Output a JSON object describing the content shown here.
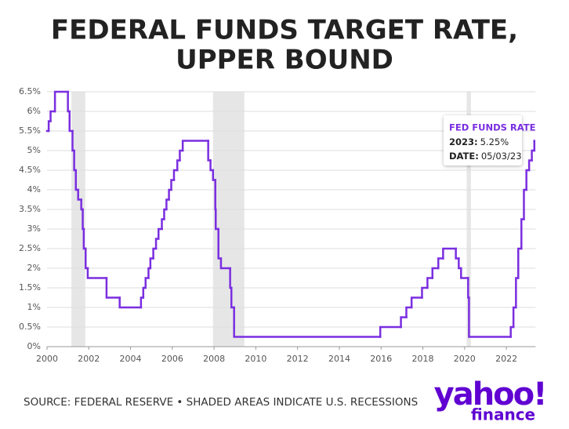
{
  "chart_data": {
    "type": "step",
    "title": [
      "FEDERAL FUNDS TARGET RATE,",
      "UPPER BOUND"
    ],
    "x": [
      2000.0,
      2000.08,
      2000.17,
      2000.38,
      2001.0,
      2001.08,
      2001.22,
      2001.3,
      2001.38,
      2001.49,
      2001.64,
      2001.71,
      2001.76,
      2001.85,
      2001.95,
      2002.85,
      2003.48,
      2004.5,
      2004.61,
      2004.72,
      2004.86,
      2004.95,
      2005.09,
      2005.22,
      2005.34,
      2005.5,
      2005.61,
      2005.72,
      2005.84,
      2005.95,
      2006.08,
      2006.24,
      2006.36,
      2006.5,
      2007.72,
      2007.83,
      2007.95,
      2008.06,
      2008.08,
      2008.21,
      2008.33,
      2008.77,
      2008.83,
      2008.96,
      2015.96,
      2016.95,
      2017.21,
      2017.46,
      2017.96,
      2018.22,
      2018.46,
      2018.74,
      2018.97,
      2019.58,
      2019.72,
      2019.83,
      2020.17,
      2020.21,
      2022.21,
      2022.34,
      2022.46,
      2022.57,
      2022.72,
      2022.84,
      2022.96,
      2023.09,
      2023.22,
      2023.34
    ],
    "series": [
      {
        "name": "FED FUNDS RATE",
        "color": "#7a2ee0",
        "values": [
          5.5,
          5.75,
          6.0,
          6.5,
          6.0,
          5.5,
          5.0,
          4.5,
          4.0,
          3.75,
          3.5,
          3.0,
          2.5,
          2.0,
          1.75,
          1.25,
          1.0,
          1.25,
          1.5,
          1.75,
          2.0,
          2.25,
          2.5,
          2.75,
          3.0,
          3.25,
          3.5,
          3.75,
          4.0,
          4.25,
          4.5,
          4.75,
          5.0,
          5.25,
          4.75,
          4.5,
          4.25,
          3.5,
          3.0,
          2.25,
          2.0,
          1.5,
          1.0,
          0.25,
          0.5,
          0.75,
          1.0,
          1.25,
          1.5,
          1.75,
          2.0,
          2.25,
          2.5,
          2.25,
          2.0,
          1.75,
          1.25,
          0.25,
          0.5,
          1.0,
          1.75,
          2.5,
          3.25,
          4.0,
          4.5,
          4.75,
          5.0,
          5.25
        ]
      }
    ],
    "recessions": [
      [
        2001.17,
        2001.83
      ],
      [
        2007.95,
        2009.45
      ],
      [
        2020.1,
        2020.3
      ]
    ],
    "recession_color": "#e6e6e6",
    "xlim": [
      2000,
      2023.4
    ],
    "xticks": [
      2000,
      2002,
      2004,
      2006,
      2008,
      2010,
      2012,
      2014,
      2016,
      2018,
      2020,
      2022
    ],
    "ylim": [
      0,
      6.5
    ],
    "yticks": [
      {
        "value": 0,
        "label": "0%"
      },
      {
        "value": 0.5,
        "label": "0.5%"
      },
      {
        "value": 1,
        "label": "1%"
      },
      {
        "value": 1.5,
        "label": "1.5%"
      },
      {
        "value": 2,
        "label": "2%"
      },
      {
        "value": 2.5,
        "label": "2.5%"
      },
      {
        "value": 3,
        "label": "3%"
      },
      {
        "value": 3.5,
        "label": "3.5%"
      },
      {
        "value": 4,
        "label": "4%"
      },
      {
        "value": 4.5,
        "label": "4.5%"
      },
      {
        "value": 5,
        "label": "5%"
      },
      {
        "value": 5.5,
        "label": "5.5%"
      },
      {
        "value": 6,
        "label": "6%"
      },
      {
        "value": 6.5,
        "label": "6.5%"
      }
    ],
    "grid": true,
    "tooltip": {
      "title": "FED FUNDS RATE",
      "label1": "2023:",
      "value1": "5.25%",
      "label2": "DATE:",
      "value2": "05/03/23"
    },
    "source": "SOURCE: FEDERAL RESERVE • SHADED AREAS INDICATE U.S. RECESSIONS",
    "logo": {
      "main": "yahoo!",
      "sub": "finance"
    }
  }
}
